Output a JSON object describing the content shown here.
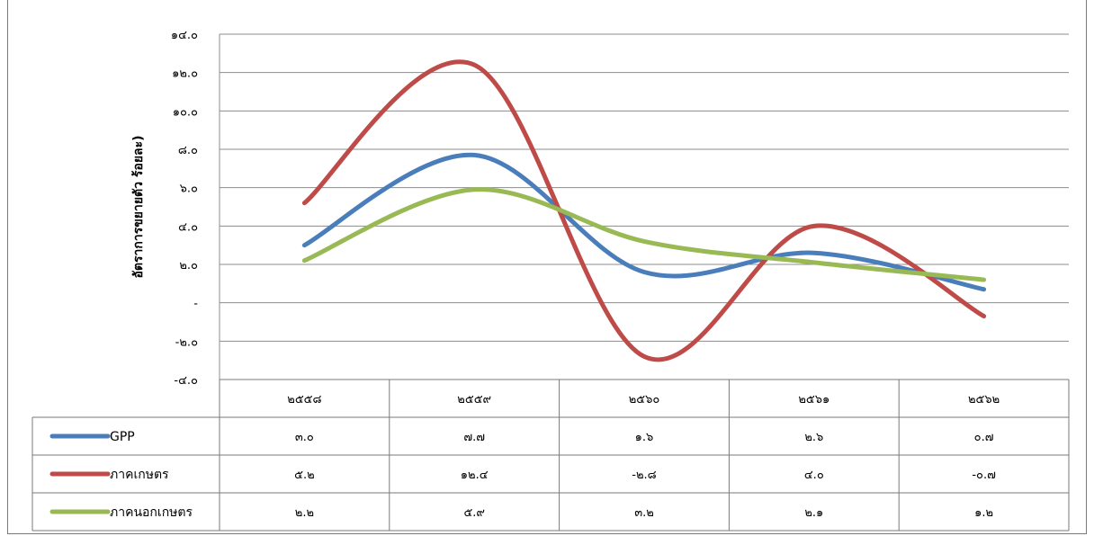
{
  "chart_data": {
    "type": "line",
    "title": "",
    "xlabel": "",
    "ylabel": "อัตราการขยายตัว ร้อยละ)",
    "categories": [
      "๒๕๕๘",
      "๒๕๕๙",
      "๒๕๖๐",
      "๒๕๖๑",
      "๒๕๖๒"
    ],
    "ylim": [
      -4,
      14
    ],
    "yticks": [
      -4,
      -2,
      0,
      2,
      4,
      6,
      8,
      10,
      12,
      14
    ],
    "ytick_labels": [
      "-๔.๐",
      "-๒.๐",
      "-",
      "๒.๐",
      "๔.๐",
      "๖.๐",
      "๘.๐",
      "๑๐.๐",
      "๑๒.๐",
      "๑๔.๐"
    ],
    "grid": true,
    "legend": "bottom-table",
    "series": [
      {
        "name": "GPP",
        "color": "#4a7ebb",
        "values": [
          3.0,
          7.7,
          1.6,
          2.6,
          0.7
        ],
        "labels": [
          "๓.๐",
          "๗.๗",
          "๑.๖",
          "๒.๖",
          "๐.๗"
        ]
      },
      {
        "name": "ภาคเกษตร",
        "color": "#be4b48",
        "values": [
          5.2,
          12.4,
          -2.8,
          4.0,
          -0.7
        ],
        "labels": [
          "๕.๒",
          "๑๒.๔",
          "-๒.๘",
          "๔.๐",
          "-๐.๗"
        ]
      },
      {
        "name": "ภาคนอกเกษตร",
        "color": "#98b954",
        "values": [
          2.2,
          5.9,
          3.2,
          2.1,
          1.2
        ],
        "labels": [
          "๒.๒",
          "๕.๙",
          "๓.๒",
          "๒.๑",
          "๑.๒"
        ]
      }
    ]
  }
}
